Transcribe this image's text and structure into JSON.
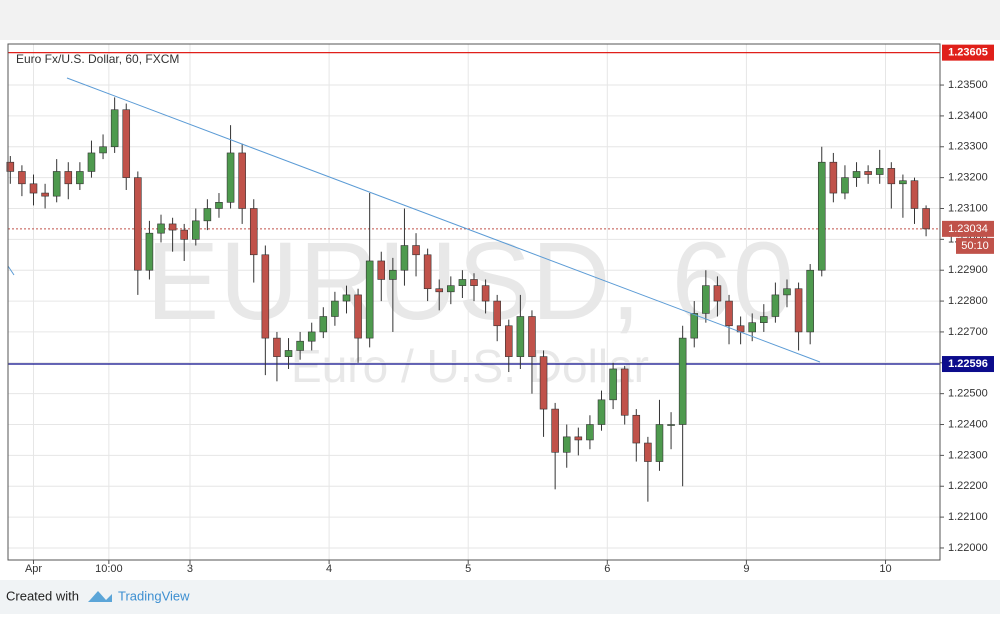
{
  "chart_data": {
    "type": "candlestick",
    "title": "Euro Fx/U.S. Dollar, 60, FXCM",
    "watermark": "EURUSD, 60",
    "watermark_subtitle": "Euro / U.S. Dollar",
    "up_color": "#4e9a4e",
    "down_color": "#c0524a",
    "x": [
      0,
      1,
      2,
      3,
      4,
      5,
      6,
      7,
      8,
      9,
      10,
      11,
      12,
      13,
      14,
      15,
      16,
      17,
      18,
      19,
      20,
      21,
      22,
      23,
      24,
      25,
      26,
      27,
      28,
      29,
      30,
      31,
      32,
      33,
      34,
      35,
      36,
      37,
      38,
      39,
      40,
      41,
      42,
      43,
      44,
      45,
      46,
      47,
      48,
      49,
      50,
      51,
      52,
      53,
      54,
      55,
      56,
      57,
      58,
      59,
      60,
      61,
      62,
      63,
      64,
      65,
      66,
      67,
      68,
      69,
      70,
      71,
      72,
      73,
      74,
      75,
      76,
      77,
      78,
      79
    ],
    "open": [
      1.2325,
      1.2322,
      1.2318,
      1.2315,
      1.2314,
      1.2322,
      1.2318,
      1.2322,
      1.2328,
      1.233,
      1.2342,
      1.232,
      1.229,
      1.2302,
      1.2305,
      1.2303,
      1.23,
      1.2306,
      1.231,
      1.2312,
      1.2328,
      1.231,
      1.2295,
      1.2268,
      1.2262,
      1.2264,
      1.2267,
      1.227,
      1.2275,
      1.228,
      1.2282,
      1.2268,
      1.2293,
      1.2287,
      1.229,
      1.2298,
      1.2295,
      1.2284,
      1.2283,
      1.2285,
      1.2287,
      1.2285,
      1.228,
      1.2272,
      1.2262,
      1.2275,
      1.2262,
      1.2245,
      1.2231,
      1.2236,
      1.2235,
      1.224,
      1.2248,
      1.2258,
      1.2243,
      1.2234,
      1.2228,
      1.224,
      1.224,
      1.2268,
      1.2276,
      1.2285,
      1.228,
      1.2272,
      1.227,
      1.2273,
      1.2275,
      1.2282,
      1.2284,
      1.227,
      1.229,
      1.2325,
      1.2315,
      1.232,
      1.2322,
      1.2321,
      1.2323,
      1.2318,
      1.2319,
      1.231
    ],
    "high": [
      1.2327,
      1.2324,
      1.2321,
      1.2318,
      1.2326,
      1.2325,
      1.2325,
      1.2332,
      1.2334,
      1.2346,
      1.2344,
      1.2322,
      1.2306,
      1.2308,
      1.2307,
      1.2305,
      1.231,
      1.2313,
      1.2315,
      1.2337,
      1.2331,
      1.2313,
      1.2298,
      1.227,
      1.2268,
      1.227,
      1.2273,
      1.2278,
      1.2283,
      1.2285,
      1.2284,
      1.2315,
      1.2296,
      1.2294,
      1.231,
      1.2302,
      1.2297,
      1.2287,
      1.2288,
      1.229,
      1.2289,
      1.2287,
      1.2282,
      1.2274,
      1.2282,
      1.2277,
      1.2264,
      1.2247,
      1.224,
      1.2239,
      1.2243,
      1.2251,
      1.226,
      1.2259,
      1.2245,
      1.2236,
      1.2248,
      1.2244,
      1.2272,
      1.228,
      1.229,
      1.2288,
      1.2282,
      1.2275,
      1.2276,
      1.2279,
      1.2286,
      1.2287,
      1.2286,
      1.2292,
      1.233,
      1.2328,
      1.2324,
      1.2325,
      1.2324,
      1.2329,
      1.2325,
      1.2321,
      1.232,
      1.2311
    ],
    "low": [
      1.2318,
      1.2314,
      1.2311,
      1.231,
      1.2312,
      1.2313,
      1.2316,
      1.232,
      1.2326,
      1.2328,
      1.2316,
      1.2282,
      1.2287,
      1.2299,
      1.2296,
      1.2293,
      1.2298,
      1.2303,
      1.2307,
      1.231,
      1.2305,
      1.2286,
      1.2256,
      1.2254,
      1.2258,
      1.2261,
      1.2264,
      1.2268,
      1.2272,
      1.2276,
      1.226,
      1.2265,
      1.228,
      1.227,
      1.2285,
      1.2288,
      1.228,
      1.2277,
      1.2279,
      1.2281,
      1.228,
      1.2276,
      1.2267,
      1.2257,
      1.2258,
      1.225,
      1.2236,
      1.2219,
      1.2226,
      1.223,
      1.2232,
      1.2238,
      1.2245,
      1.224,
      1.2228,
      1.2215,
      1.2225,
      1.2232,
      1.222,
      1.2265,
      1.2273,
      1.2275,
      1.2266,
      1.2266,
      1.2267,
      1.227,
      1.2273,
      1.2278,
      1.2264,
      1.2266,
      1.2288,
      1.2312,
      1.2313,
      1.2317,
      1.2318,
      1.2318,
      1.231,
      1.2307,
      1.2305,
      1.2301
    ],
    "close": [
      1.2322,
      1.2318,
      1.2315,
      1.2314,
      1.2322,
      1.2318,
      1.2322,
      1.2328,
      1.233,
      1.2342,
      1.232,
      1.229,
      1.2302,
      1.2305,
      1.2303,
      1.23,
      1.2306,
      1.231,
      1.2312,
      1.2328,
      1.231,
      1.2295,
      1.2268,
      1.2262,
      1.2264,
      1.2267,
      1.227,
      1.2275,
      1.228,
      1.2282,
      1.2268,
      1.2293,
      1.2287,
      1.229,
      1.2298,
      1.2295,
      1.2284,
      1.2283,
      1.2285,
      1.2287,
      1.2285,
      1.228,
      1.2272,
      1.2262,
      1.2275,
      1.2262,
      1.2245,
      1.2231,
      1.2236,
      1.2235,
      1.224,
      1.2248,
      1.2258,
      1.2243,
      1.2234,
      1.2228,
      1.224,
      1.224,
      1.2268,
      1.2276,
      1.2285,
      1.228,
      1.2272,
      1.227,
      1.2273,
      1.2275,
      1.2282,
      1.2284,
      1.227,
      1.229,
      1.2325,
      1.2315,
      1.232,
      1.2322,
      1.2321,
      1.2323,
      1.2318,
      1.2319,
      1.231,
      1.23034
    ],
    "xlim": [
      -0.2,
      80.2
    ],
    "xticks": [
      {
        "value": 2,
        "label": "Apr"
      },
      {
        "value": 8.5,
        "label": "10:00"
      },
      {
        "value": 15.5,
        "label": "3"
      },
      {
        "value": 27.5,
        "label": "4"
      },
      {
        "value": 39.5,
        "label": "5"
      },
      {
        "value": 51.5,
        "label": "6"
      },
      {
        "value": 63.5,
        "label": "9"
      },
      {
        "value": 75.5,
        "label": "10"
      }
    ],
    "ylim": [
      1.21961,
      1.23633
    ],
    "yticks": [
      {
        "value": 1.22,
        "label": "1.22000"
      },
      {
        "value": 1.221,
        "label": "1.22100"
      },
      {
        "value": 1.222,
        "label": "1.22200"
      },
      {
        "value": 1.223,
        "label": "1.22300"
      },
      {
        "value": 1.224,
        "label": "1.22400"
      },
      {
        "value": 1.225,
        "label": "1.22500"
      },
      {
        "value": 1.226,
        "label": "1.22600"
      },
      {
        "value": 1.227,
        "label": "1.22700"
      },
      {
        "value": 1.228,
        "label": "1.22800"
      },
      {
        "value": 1.229,
        "label": "1.22900"
      },
      {
        "value": 1.23,
        "label": "1.23000"
      },
      {
        "value": 1.231,
        "label": "1.23100"
      },
      {
        "value": 1.232,
        "label": "1.23200"
      },
      {
        "value": 1.233,
        "label": "1.23300"
      },
      {
        "value": 1.234,
        "label": "1.23400"
      },
      {
        "value": 1.235,
        "label": "1.23500"
      }
    ],
    "grid": true,
    "levels": [
      {
        "value": 1.23605,
        "color": "#e0201a"
      },
      {
        "value": 1.22596,
        "color": "#0c0c8c"
      }
    ],
    "last_price": 1.23034,
    "countdown": "50:10"
  },
  "footer": {
    "created_with": "Created with",
    "brand": "TradingView"
  }
}
